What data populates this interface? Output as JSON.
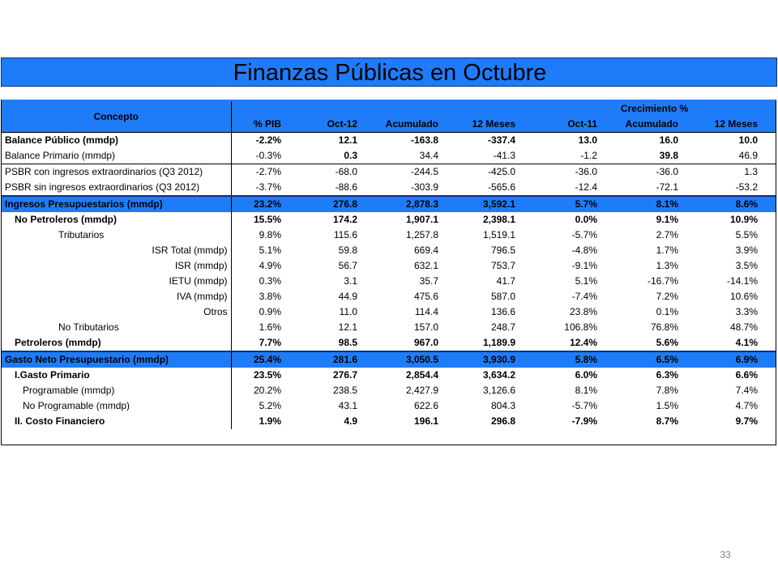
{
  "title": "Finanzas Públicas en Octubre",
  "header": {
    "concepto": "Concepto",
    "crecimiento": "Crecimiento  %",
    "columns": [
      "% PIB",
      "Oct-12",
      "Acumulado",
      "12 Meses",
      "Oct-11",
      "Acumulado",
      "12 Meses"
    ]
  },
  "rows": [
    {
      "label": "Balance Público (mmdp)",
      "values": [
        "-2.2%",
        "12.1",
        "-163.8",
        "-337.4",
        "13.0",
        "16.0",
        "10.0"
      ]
    },
    {
      "label": "Balance Primario (mmdp)",
      "values": [
        "-0.3%",
        "0.3",
        "34.4",
        "-41.3",
        "-1.2",
        "39.8",
        "46.9"
      ]
    },
    {
      "label": "PSBR con ingresos extraordinarios (Q3 2012)",
      "values": [
        "-2.7%",
        "-68.0",
        "-244.5",
        "-425.0",
        "-36.0",
        "-36.0",
        "1.3"
      ]
    },
    {
      "label": "PSBR sin ingresos extraordinarios (Q3 2012)",
      "values": [
        "-3.7%",
        "-88.6",
        "-303.9",
        "-565.6",
        "-12.4",
        "-72.1",
        "-53.2"
      ]
    },
    {
      "label": "Ingresos Presupuestarios (mmdp)",
      "values": [
        "23.2%",
        "276.8",
        "2,878.3",
        "3,592.1",
        "5.7%",
        "8.1%",
        "8.6%"
      ]
    },
    {
      "label": "No Petroleros (mmdp)",
      "values": [
        "15.5%",
        "174.2",
        "1,907.1",
        "2,398.1",
        "0.0%",
        "9.1%",
        "10.9%"
      ]
    },
    {
      "label": "Tributarios",
      "values": [
        "9.8%",
        "115.6",
        "1,257.8",
        "1,519.1",
        "-5.7%",
        "2.7%",
        "5.5%"
      ]
    },
    {
      "label": "ISR Total (mmdp)",
      "values": [
        "5.1%",
        "59.8",
        "669.4",
        "796.5",
        "-4.8%",
        "1.7%",
        "3.9%"
      ]
    },
    {
      "label": "ISR (mmdp)",
      "values": [
        "4.9%",
        "56.7",
        "632.1",
        "753.7",
        "-9.1%",
        "1.3%",
        "3.5%"
      ]
    },
    {
      "label": "IETU (mmdp)",
      "values": [
        "0.3%",
        "3.1",
        "35.7",
        "41.7",
        "5.1%",
        "-16.7%",
        "-14.1%"
      ]
    },
    {
      "label": "IVA (mmdp)",
      "values": [
        "3.8%",
        "44.9",
        "475.6",
        "587.0",
        "-7.4%",
        "7.2%",
        "10.6%"
      ]
    },
    {
      "label": "Otros",
      "values": [
        "0.9%",
        "11.0",
        "114.4",
        "136.6",
        "23.8%",
        "0.1%",
        "3.3%"
      ]
    },
    {
      "label": "No Tributarios",
      "values": [
        "1.6%",
        "12.1",
        "157.0",
        "248.7",
        "106.8%",
        "76.8%",
        "48.7%"
      ]
    },
    {
      "label": "Petroleros (mmdp)",
      "values": [
        "7.7%",
        "98.5",
        "967.0",
        "1,189.9",
        "12.4%",
        "5.6%",
        "4.1%"
      ]
    },
    {
      "label": "Gasto Neto Presupuestario (mmdp)",
      "values": [
        "25.4%",
        "281.6",
        "3,050.5",
        "3,930.9",
        "5.8%",
        "6.5%",
        "6.9%"
      ]
    },
    {
      "label": "I.Gasto Primario",
      "values": [
        "23.5%",
        "276.7",
        "2,854.4",
        "3,634.2",
        "6.0%",
        "6.3%",
        "6.6%"
      ]
    },
    {
      "label": "Programable (mmdp)",
      "values": [
        "20.2%",
        "238.5",
        "2,427.9",
        "3,126.6",
        "8.1%",
        "7.8%",
        "7.4%"
      ]
    },
    {
      "label": "No Programable (mmdp)",
      "values": [
        "5.2%",
        "43.1",
        "622.6",
        "804.3",
        "-5.7%",
        "1.5%",
        "4.7%"
      ]
    },
    {
      "label": "II. Costo Financiero",
      "values": [
        "1.9%",
        "4.9",
        "196.1",
        "296.8",
        "-7.9%",
        "8.7%",
        "9.7%"
      ]
    }
  ],
  "page_number": "33"
}
